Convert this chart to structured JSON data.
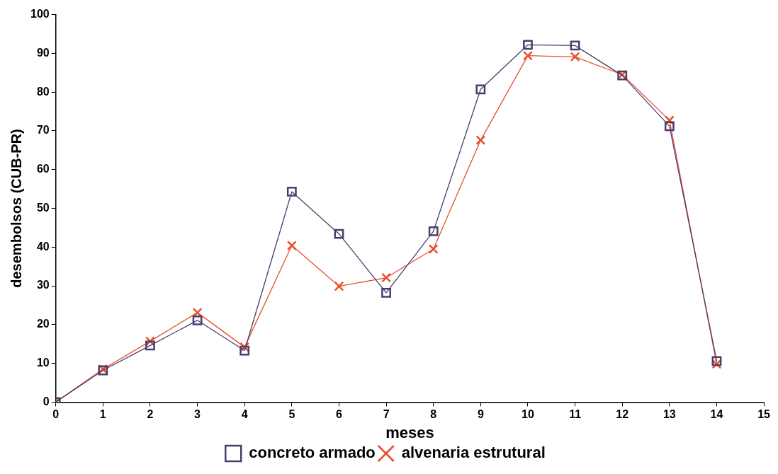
{
  "chart_data": {
    "type": "line",
    "xlabel": "meses",
    "ylabel": "desembolsos (CUB-PR)",
    "x": [
      0,
      1,
      2,
      3,
      4,
      5,
      6,
      7,
      8,
      9,
      10,
      11,
      12,
      13,
      14
    ],
    "series": [
      {
        "name": "concreto armado",
        "color": "#4b3d6e",
        "marker": "square",
        "values": [
          0,
          8.2,
          14.6,
          21.1,
          13.3,
          54.3,
          43.4,
          28.2,
          44.1,
          80.7,
          92.2,
          92,
          84.3,
          71.2,
          10.6
        ]
      },
      {
        "name": "alvenaria estrutural",
        "color": "#e8502a",
        "marker": "cross",
        "values": [
          0,
          8.5,
          15.7,
          23.1,
          14.2,
          40.4,
          29.9,
          32.1,
          39.5,
          67.6,
          89.4,
          89.1,
          84.5,
          72.7,
          9.8
        ]
      }
    ],
    "xlim": [
      0,
      15
    ],
    "xticks": [
      0,
      1,
      2,
      3,
      4,
      5,
      6,
      7,
      8,
      9,
      10,
      11,
      12,
      13,
      14,
      15
    ],
    "ylim": [
      0,
      100
    ],
    "yticks": [
      0,
      10,
      20,
      30,
      40,
      50,
      60,
      70,
      80,
      90,
      100
    ],
    "grid": false,
    "legend": "bottom"
  }
}
